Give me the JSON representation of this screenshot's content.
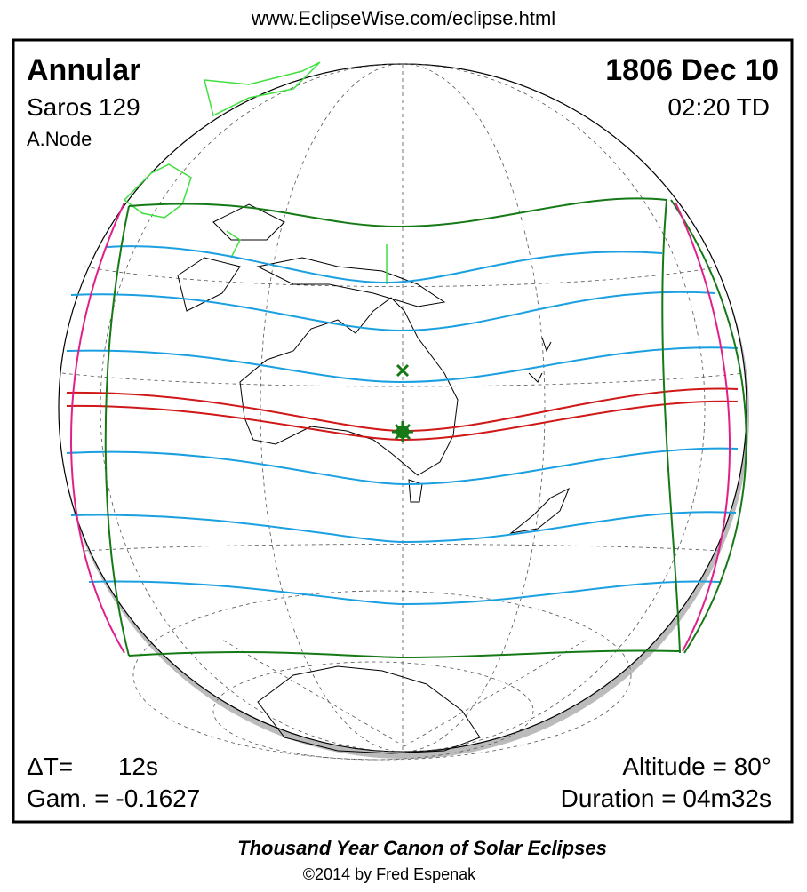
{
  "header": {
    "url": "www.EclipseWise.com/eclipse.html"
  },
  "eclipse": {
    "type": "Annular",
    "saros": "Saros 129",
    "node": "A.Node",
    "date": "1806 Dec 10",
    "time": "02:20 TD",
    "delta_t_label": "ΔT=",
    "delta_t": "12s",
    "gamma": "Gam. = -0.1627",
    "altitude": "Altitude = 80°",
    "duration": "Duration = 04m32s"
  },
  "footer": {
    "title": "Thousand Year Canon of Solar Eclipses",
    "credit": "©2014 by Fred Espenak"
  }
}
